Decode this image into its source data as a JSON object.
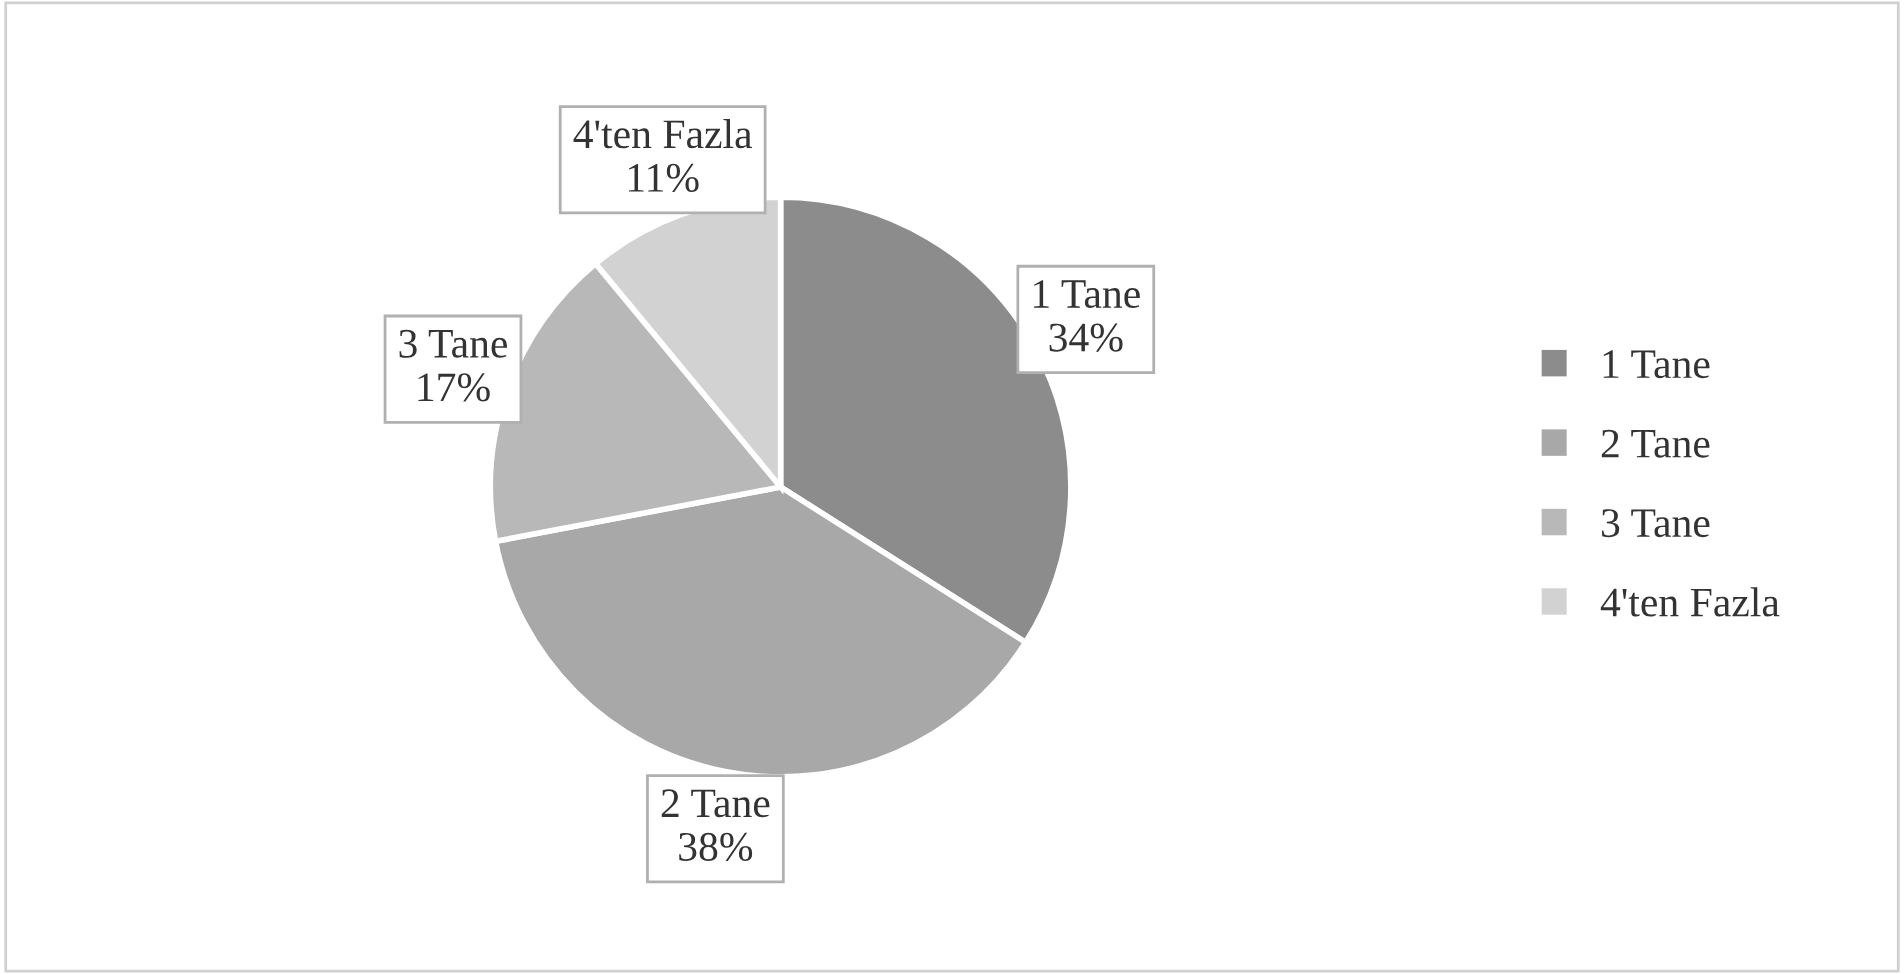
{
  "chart_data": {
    "type": "pie",
    "categories": [
      "1 Tane",
      "2 Tane",
      "3 Tane",
      "4'ten Fazla"
    ],
    "values": [
      34,
      38,
      17,
      11
    ],
    "value_labels": [
      "34%",
      "38%",
      "17%",
      "11%"
    ],
    "colors": [
      "#8c8c8c",
      "#a8a8a8",
      "#b8b8b8",
      "#d2d2d2"
    ],
    "legend": "right"
  }
}
